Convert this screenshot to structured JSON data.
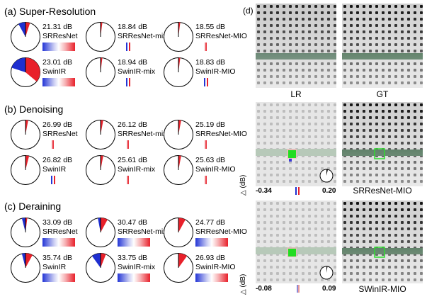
{
  "sections": [
    {
      "title": "(a) Super-Resolution",
      "items": [
        {
          "db": "21.31 dB",
          "name": "SRResNet",
          "red": 0.05,
          "blue": 0.08,
          "bar": "wide"
        },
        {
          "db": "18.84 dB",
          "name": "SRResNet-mix",
          "red": 0.02,
          "blue": 0.0,
          "bar": "narrow"
        },
        {
          "db": "18.55 dB",
          "name": "SRResNet-MIO",
          "red": 0.02,
          "blue": 0.0,
          "bar": "thin"
        },
        {
          "db": "23.01 dB",
          "name": "SwinIR",
          "red": 0.36,
          "blue": 0.2,
          "bar": "wide"
        },
        {
          "db": "18.94 dB",
          "name": "SwinIR-mix",
          "red": 0.02,
          "blue": 0.0,
          "bar": "narrow"
        },
        {
          "db": "18.83 dB",
          "name": "SwinIR-MIO",
          "red": 0.02,
          "blue": 0.0,
          "bar": "narrow"
        }
      ]
    },
    {
      "title": "(b) Denoising",
      "items": [
        {
          "db": "26.99 dB",
          "name": "SRResNet",
          "red": 0.03,
          "blue": 0.0,
          "bar": "thin"
        },
        {
          "db": "26.12 dB",
          "name": "SRResNet-mix",
          "red": 0.03,
          "blue": 0.0,
          "bar": "thin"
        },
        {
          "db": "25.19 dB",
          "name": "SRResNet-MIO",
          "red": 0.03,
          "blue": 0.0,
          "bar": "thin"
        },
        {
          "db": "26.82 dB",
          "name": "SwinIR",
          "red": 0.04,
          "blue": 0.0,
          "bar": "narrow"
        },
        {
          "db": "25.61 dB",
          "name": "SwinIR-mix",
          "red": 0.03,
          "blue": 0.0,
          "bar": "thin"
        },
        {
          "db": "25.63 dB",
          "name": "SwinIR-MIO",
          "red": 0.03,
          "blue": 0.0,
          "bar": "thin"
        }
      ]
    },
    {
      "title": "(c) Deraining",
      "items": [
        {
          "db": "33.09 dB",
          "name": "SRResNet",
          "red": 0.02,
          "blue": 0.04,
          "bar": "wide"
        },
        {
          "db": "30.47 dB",
          "name": "SRResNet-mix",
          "red": 0.08,
          "blue": 0.03,
          "bar": "wide"
        },
        {
          "db": "24.77 dB",
          "name": "SRResNet-MIO",
          "red": 0.08,
          "blue": 0.0,
          "bar": "wide"
        },
        {
          "db": "35.74 dB",
          "name": "SwinIR",
          "red": 0.08,
          "blue": 0.04,
          "bar": "wide"
        },
        {
          "db": "33.75 dB",
          "name": "SwinIR-mix",
          "red": 0.06,
          "blue": 0.1,
          "bar": "wide"
        },
        {
          "db": "26.93 dB",
          "name": "SwinIR-MIO",
          "red": 0.1,
          "blue": 0.0,
          "bar": "wide"
        }
      ]
    }
  ],
  "panel_d": {
    "label": "(d)",
    "captions": [
      "LR",
      "GT",
      "SRResNet-MIO",
      "SWinIR-MIO"
    ],
    "row2": {
      "axis": "△ (dB)",
      "min": "-0.34",
      "max": "0.20"
    },
    "row3": {
      "axis": "△ (dB)",
      "min": "-0.08",
      "max": "0.09"
    }
  },
  "colors": {
    "red": "#e8202a",
    "blue": "#1f2fd0",
    "green_box": "#2fdc2f"
  }
}
